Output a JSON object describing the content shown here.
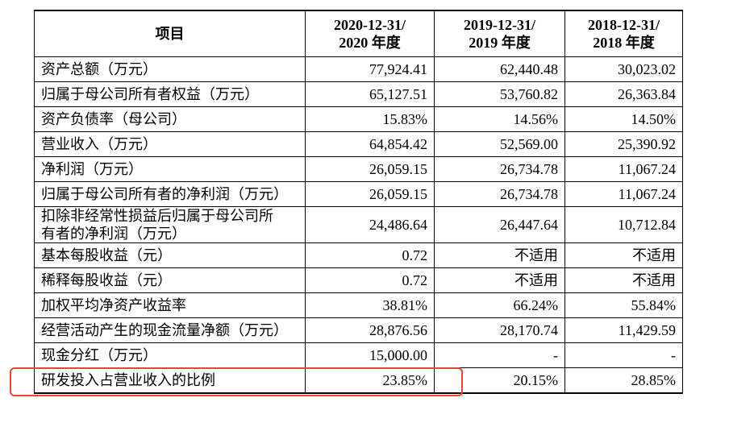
{
  "table": {
    "header": [
      "项目",
      [
        "2020-12-31/",
        "2020 年度"
      ],
      [
        "2019-12-31/",
        "2019 年度"
      ],
      [
        "2018-12-31/",
        "2018 年度"
      ]
    ],
    "rows": [
      [
        "资产总额（万元）",
        "77,924.41",
        "62,440.48",
        "30,023.02"
      ],
      [
        "归属于母公司所有者权益（万元）",
        "65,127.51",
        "53,760.82",
        "26,363.84"
      ],
      [
        "资产负债率（母公司）",
        "15.83%",
        "14.56%",
        "14.50%"
      ],
      [
        "营业收入（万元）",
        "64,854.42",
        "52,569.00",
        "25,390.92"
      ],
      [
        "净利润（万元）",
        "26,059.15",
        "26,734.78",
        "11,067.24"
      ],
      [
        "归属于母公司所有者的净利润（万元）",
        "26,059.15",
        "26,734.78",
        "11,067.24"
      ],
      [
        [
          "扣除非经常性损益后归属于母公司所",
          "有者的净利润（万元）"
        ],
        "24,486.64",
        "26,447.64",
        "10,712.84"
      ],
      [
        "基本每股收益（元）",
        "0.72",
        "不适用",
        "不适用"
      ],
      [
        "稀释每股收益（元）",
        "0.72",
        "不适用",
        "不适用"
      ],
      [
        "加权平均净资产收益率",
        "38.81%",
        "66.24%",
        "55.84%"
      ],
      [
        "经营活动产生的现金流量净额（万元）",
        "28,876.56",
        "28,170.74",
        "11,429.59"
      ],
      [
        "现金分红（万元）",
        "15,000.00",
        "-",
        "-"
      ],
      [
        "研发投入占营业收入的比例",
        "23.85%",
        "20.15%",
        "28.85%"
      ]
    ]
  }
}
